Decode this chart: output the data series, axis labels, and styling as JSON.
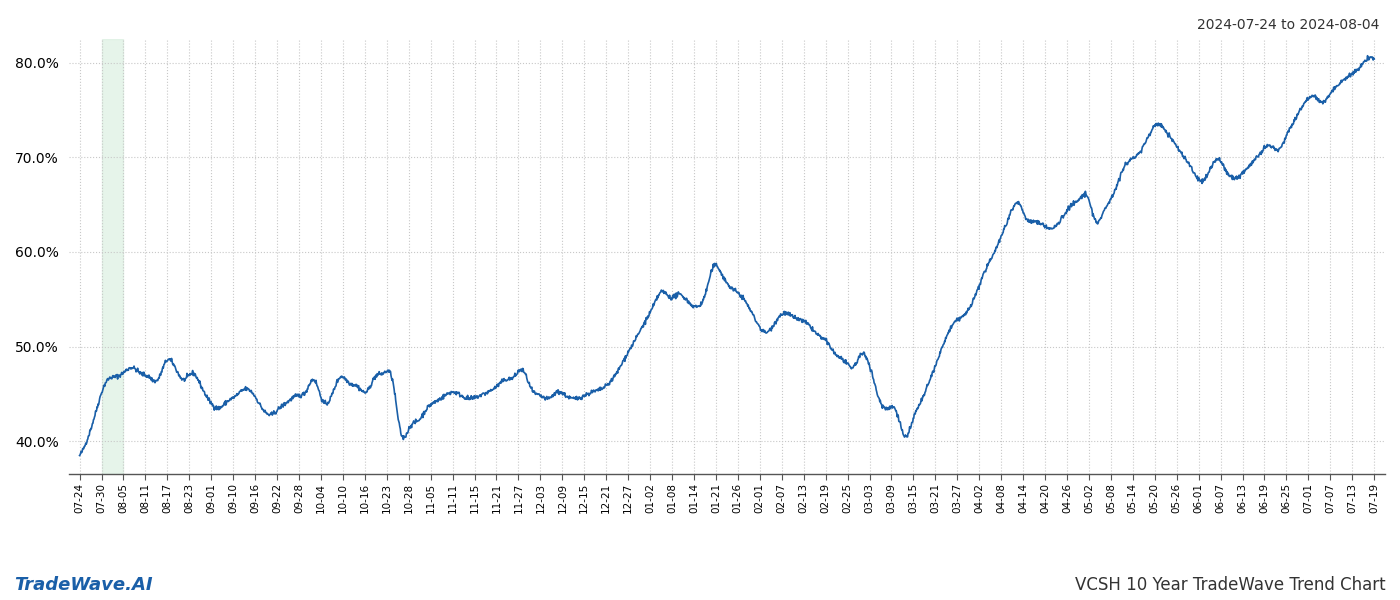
{
  "title_top_right": "2024-07-24 to 2024-08-04",
  "title_bottom_left": "TradeWave.AI",
  "title_bottom_right": "VCSH 10 Year TradeWave Trend Chart",
  "line_color": "#1a5fa8",
  "line_width": 1.2,
  "background_color": "#ffffff",
  "grid_color": "#c8c8c8",
  "shade_color": "#d6eedd",
  "shade_alpha": 0.6,
  "ylim": [
    36.5,
    82.5
  ],
  "yticks": [
    40.0,
    50.0,
    60.0,
    70.0,
    80.0
  ],
  "ytick_labels": [
    "40.0%",
    "50.0%",
    "60.0%",
    "70.0%",
    "80.0%"
  ],
  "x_labels": [
    "07-24",
    "07-30",
    "08-05",
    "08-11",
    "08-17",
    "08-23",
    "09-01",
    "09-10",
    "09-16",
    "09-22",
    "09-28",
    "10-04",
    "10-10",
    "10-16",
    "10-23",
    "10-28",
    "11-05",
    "11-11",
    "11-15",
    "11-21",
    "11-27",
    "12-03",
    "12-09",
    "12-15",
    "12-21",
    "12-27",
    "01-02",
    "01-08",
    "01-14",
    "01-21",
    "01-26",
    "02-01",
    "02-07",
    "02-13",
    "02-19",
    "02-25",
    "03-03",
    "03-09",
    "03-15",
    "03-21",
    "03-27",
    "04-02",
    "04-08",
    "04-14",
    "04-20",
    "04-26",
    "05-02",
    "05-08",
    "05-14",
    "05-20",
    "05-26",
    "06-01",
    "06-07",
    "06-13",
    "06-19",
    "06-25",
    "07-01",
    "07-07",
    "07-13",
    "07-19"
  ],
  "values": [
    38.5,
    40.5,
    43.5,
    46.2,
    46.8,
    47.2,
    47.8,
    47.2,
    46.8,
    46.5,
    48.5,
    47.8,
    46.5,
    47.2,
    45.8,
    44.2,
    43.5,
    44.2,
    44.8,
    45.5,
    45.0,
    43.5,
    42.8,
    43.5,
    44.2,
    44.8,
    45.2,
    46.5,
    44.2,
    44.8,
    46.8,
    46.2,
    45.8,
    45.2,
    46.8,
    47.2,
    46.5,
    40.8,
    41.5,
    42.2,
    43.5,
    44.2,
    44.8,
    45.2,
    44.8,
    44.5,
    44.8,
    45.2,
    45.8,
    46.5,
    46.8,
    47.5,
    45.5,
    44.8,
    44.5,
    45.2,
    44.8,
    44.5,
    44.8,
    45.2,
    45.5,
    46.2,
    47.5,
    49.2,
    50.8,
    52.5,
    54.2,
    55.8,
    55.2,
    55.5,
    54.8,
    54.2,
    55.5,
    58.5,
    57.5,
    56.2,
    55.5,
    54.2,
    52.5,
    51.5,
    52.5,
    53.5,
    53.2,
    52.8,
    52.2,
    51.2,
    50.5,
    49.2,
    48.5,
    47.8,
    49.2,
    47.8,
    44.5,
    43.5,
    43.2,
    40.5,
    42.5,
    44.5,
    46.8,
    49.2,
    51.5,
    52.8,
    53.5,
    55.2,
    57.5,
    59.5,
    61.5,
    63.8,
    65.2,
    63.5,
    63.2,
    62.8,
    62.5,
    63.5,
    64.8,
    65.5,
    65.8,
    63.2,
    64.5,
    66.2,
    68.5,
    69.8,
    70.5,
    72.2,
    73.5,
    72.8,
    71.5,
    70.2,
    68.8,
    67.5,
    68.5,
    69.8,
    68.5,
    67.8,
    68.5,
    69.5,
    70.5,
    71.2,
    70.8,
    72.5,
    74.2,
    75.8,
    76.5,
    75.8,
    76.8,
    77.8,
    78.5,
    79.2,
    80.2,
    80.5
  ],
  "shade_x_start_label": "07-30",
  "shade_x_end_label": "08-05"
}
